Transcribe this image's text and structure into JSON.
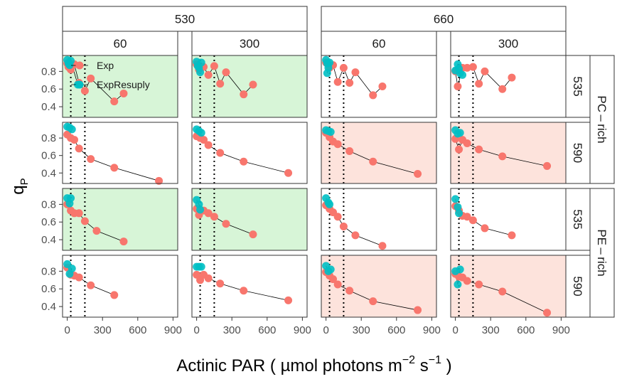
{
  "chart_data": {
    "type": "scatter",
    "xlabel": "Actinic PAR ( µmol photons  m",
    "xlabel_sup1": "−2",
    "xlabel_mid": "  s",
    "xlabel_sup2": "−1",
    "xlabel_end": " )",
    "ylabel": "q",
    "ylabel_sub": "P",
    "xlim": [
      -40,
      940
    ],
    "ylim": [
      0.28,
      0.98
    ],
    "x_ticks": [
      0,
      300,
      600,
      900
    ],
    "x_tick_labels": [
      "0",
      "300",
      "600",
      "900"
    ],
    "y_ticks": [
      0.4,
      0.6,
      0.8
    ],
    "y_tick_labels": [
      "0.4",
      "0.6",
      "0.8"
    ],
    "vlines": [
      30,
      150
    ],
    "colors": {
      "Exp": "#F8766D",
      "ExpResuply": "#00BFC4",
      "green_bg": "#d7f5d7",
      "red_bg": "#fde3dc",
      "line": "#000000"
    },
    "legend": [
      "Exp",
      "ExpResuply"
    ],
    "col_groups": [
      "530",
      "660"
    ],
    "col_labels": [
      "60",
      "300",
      "60",
      "300"
    ],
    "row_labels": [
      "535",
      "590",
      "535",
      "590"
    ],
    "row_groups": [
      "PC – rich",
      "PE – rich"
    ],
    "panels": [
      {
        "row": 0,
        "col": 0,
        "bg": "green",
        "exp": [
          [
            0,
            0.89
          ],
          [
            10,
            0.85
          ],
          [
            30,
            0.82
          ],
          [
            60,
            0.88
          ],
          [
            100,
            0.67
          ],
          [
            150,
            0.58
          ],
          [
            200,
            0.72
          ],
          [
            400,
            0.46
          ],
          [
            480,
            0.55
          ]
        ],
        "resupply": [
          [
            0,
            0.93
          ],
          [
            10,
            0.89
          ],
          [
            20,
            0.87
          ],
          [
            30,
            0.92
          ],
          [
            90,
            0.65
          ]
        ]
      },
      {
        "row": 0,
        "col": 1,
        "bg": "green",
        "exp": [
          [
            0,
            0.88
          ],
          [
            20,
            0.82
          ],
          [
            60,
            0.85
          ],
          [
            100,
            0.76
          ],
          [
            150,
            0.86
          ],
          [
            200,
            0.66
          ],
          [
            250,
            0.79
          ],
          [
            400,
            0.54
          ],
          [
            480,
            0.65
          ]
        ],
        "resupply": [
          [
            0,
            0.91
          ],
          [
            10,
            0.86
          ],
          [
            20,
            0.84
          ],
          [
            40,
            0.9
          ],
          [
            30,
            0.79
          ]
        ]
      },
      {
        "row": 0,
        "col": 2,
        "bg": "none",
        "exp": [
          [
            0,
            0.9
          ],
          [
            30,
            0.84
          ],
          [
            60,
            0.87
          ],
          [
            100,
            0.68
          ],
          [
            150,
            0.84
          ],
          [
            200,
            0.67
          ],
          [
            250,
            0.79
          ],
          [
            400,
            0.53
          ],
          [
            480,
            0.63
          ]
        ],
        "resupply": [
          [
            0,
            0.93
          ],
          [
            10,
            0.89
          ],
          [
            20,
            0.84
          ],
          [
            10,
            0.78
          ],
          [
            30,
            0.9
          ]
        ]
      },
      {
        "row": 0,
        "col": 3,
        "bg": "none",
        "exp": [
          [
            0,
            0.8
          ],
          [
            20,
            0.63
          ],
          [
            60,
            0.84
          ],
          [
            100,
            0.84
          ],
          [
            150,
            0.85
          ],
          [
            200,
            0.66
          ],
          [
            250,
            0.8
          ],
          [
            400,
            0.6
          ],
          [
            480,
            0.73
          ]
        ],
        "resupply": [
          [
            0,
            0.81
          ],
          [
            20,
            0.88
          ],
          [
            30,
            0.83
          ],
          [
            40,
            0.78
          ],
          [
            60,
            0.76
          ]
        ]
      },
      {
        "row": 1,
        "col": 0,
        "bg": "none",
        "exp": [
          [
            0,
            0.84
          ],
          [
            30,
            0.8
          ],
          [
            60,
            0.78
          ],
          [
            100,
            0.68
          ],
          [
            200,
            0.56
          ],
          [
            400,
            0.46
          ],
          [
            780,
            0.31
          ]
        ],
        "resupply": [
          [
            0,
            0.93
          ],
          [
            20,
            0.92
          ],
          [
            40,
            0.9
          ]
        ]
      },
      {
        "row": 1,
        "col": 1,
        "bg": "none",
        "exp": [
          [
            0,
            0.82
          ],
          [
            30,
            0.8
          ],
          [
            60,
            0.78
          ],
          [
            100,
            0.72
          ],
          [
            200,
            0.63
          ],
          [
            400,
            0.53
          ],
          [
            780,
            0.4
          ]
        ],
        "resupply": [
          [
            0,
            0.9
          ],
          [
            20,
            0.88
          ],
          [
            40,
            0.86
          ]
        ]
      },
      {
        "row": 1,
        "col": 2,
        "bg": "red",
        "exp": [
          [
            0,
            0.86
          ],
          [
            30,
            0.81
          ],
          [
            60,
            0.76
          ],
          [
            100,
            0.73
          ],
          [
            200,
            0.65
          ],
          [
            400,
            0.53
          ],
          [
            780,
            0.39
          ]
        ],
        "resupply": [
          [
            0,
            0.89
          ],
          [
            20,
            0.88
          ],
          [
            40,
            0.87
          ]
        ]
      },
      {
        "row": 1,
        "col": 3,
        "bg": "red",
        "exp": [
          [
            0,
            0.79
          ],
          [
            30,
            0.67
          ],
          [
            60,
            0.78
          ],
          [
            100,
            0.74
          ],
          [
            200,
            0.67
          ],
          [
            400,
            0.59
          ],
          [
            780,
            0.48
          ]
        ],
        "resupply": [
          [
            0,
            0.89
          ],
          [
            20,
            0.85
          ],
          [
            40,
            0.86
          ]
        ]
      },
      {
        "row": 2,
        "col": 0,
        "bg": "green",
        "exp": [
          [
            0,
            0.8
          ],
          [
            30,
            0.73
          ],
          [
            60,
            0.7
          ],
          [
            100,
            0.7
          ],
          [
            150,
            0.61
          ],
          [
            250,
            0.5
          ],
          [
            480,
            0.38
          ]
        ],
        "resupply": [
          [
            0,
            0.87
          ],
          [
            20,
            0.81
          ],
          [
            30,
            0.87
          ]
        ]
      },
      {
        "row": 2,
        "col": 1,
        "bg": "green",
        "exp": [
          [
            0,
            0.75
          ],
          [
            20,
            0.68
          ],
          [
            60,
            0.73
          ],
          [
            100,
            0.7
          ],
          [
            150,
            0.66
          ],
          [
            250,
            0.58
          ],
          [
            480,
            0.46
          ]
        ],
        "resupply": [
          [
            0,
            0.85
          ],
          [
            20,
            0.8
          ],
          [
            30,
            0.74
          ]
        ]
      },
      {
        "row": 2,
        "col": 2,
        "bg": "none",
        "exp": [
          [
            0,
            0.79
          ],
          [
            30,
            0.75
          ],
          [
            60,
            0.71
          ],
          [
            100,
            0.66
          ],
          [
            150,
            0.55
          ],
          [
            250,
            0.45
          ],
          [
            480,
            0.33
          ]
        ],
        "resupply": [
          [
            0,
            0.87
          ],
          [
            20,
            0.82
          ],
          [
            30,
            0.8
          ]
        ]
      },
      {
        "row": 2,
        "col": 3,
        "bg": "none",
        "exp": [
          [
            0,
            0.78
          ],
          [
            30,
            0.73
          ],
          [
            60,
            0.67
          ],
          [
            100,
            0.66
          ],
          [
            150,
            0.62
          ],
          [
            250,
            0.53
          ],
          [
            480,
            0.45
          ]
        ],
        "resupply": [
          [
            0,
            0.86
          ],
          [
            20,
            0.77
          ],
          [
            30,
            0.7
          ]
        ]
      },
      {
        "row": 3,
        "col": 0,
        "bg": "none",
        "exp": [
          [
            0,
            0.84
          ],
          [
            30,
            0.76
          ],
          [
            60,
            0.75
          ],
          [
            100,
            0.73
          ],
          [
            200,
            0.64
          ],
          [
            400,
            0.53
          ]
        ],
        "resupply": [
          [
            0,
            0.88
          ],
          [
            20,
            0.77
          ],
          [
            40,
            0.83
          ]
        ]
      },
      {
        "row": 3,
        "col": 1,
        "bg": "none",
        "exp": [
          [
            0,
            0.76
          ],
          [
            30,
            0.7
          ],
          [
            60,
            0.76
          ],
          [
            100,
            0.72
          ],
          [
            200,
            0.66
          ],
          [
            400,
            0.58
          ],
          [
            780,
            0.47
          ]
        ],
        "resupply": [
          [
            0,
            0.85
          ],
          [
            20,
            0.85
          ],
          [
            40,
            0.85
          ]
        ]
      },
      {
        "row": 3,
        "col": 2,
        "bg": "red",
        "exp": [
          [
            0,
            0.79
          ],
          [
            30,
            0.75
          ],
          [
            60,
            0.71
          ],
          [
            100,
            0.65
          ],
          [
            200,
            0.58
          ],
          [
            400,
            0.46
          ],
          [
            780,
            0.36
          ]
        ],
        "resupply": [
          [
            0,
            0.86
          ],
          [
            20,
            0.8
          ],
          [
            40,
            0.82
          ]
        ]
      },
      {
        "row": 3,
        "col": 3,
        "bg": "red",
        "exp": [
          [
            0,
            0.77
          ],
          [
            30,
            0.74
          ],
          [
            60,
            0.73
          ],
          [
            100,
            0.69
          ],
          [
            200,
            0.65
          ],
          [
            400,
            0.57
          ],
          [
            780,
            0.33
          ]
        ],
        "resupply": [
          [
            0,
            0.8
          ],
          [
            20,
            0.65
          ],
          [
            40,
            0.82
          ]
        ]
      }
    ]
  }
}
